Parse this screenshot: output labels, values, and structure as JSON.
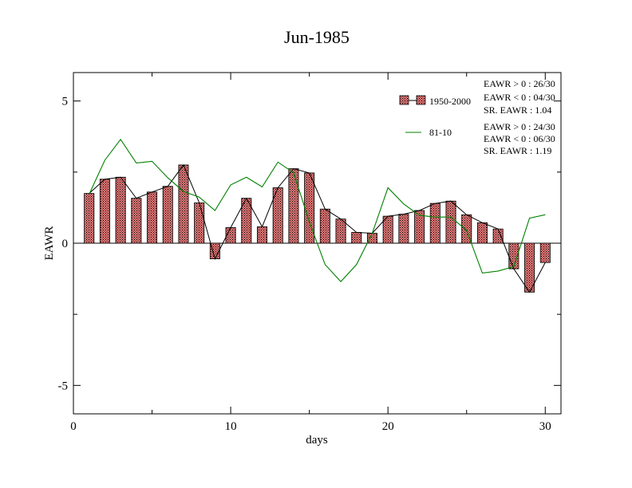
{
  "chart_data": {
    "type": "bar",
    "title": "Jun-1985",
    "xlabel": "days",
    "ylabel": "EAWR",
    "xlim": [
      0,
      31
    ],
    "ylim": [
      -6,
      6
    ],
    "xticks": [
      0,
      10,
      20,
      30
    ],
    "xtick_labels": [
      "0",
      "10",
      "20",
      "30"
    ],
    "yticks": [
      -5,
      0,
      5
    ],
    "ytick_labels": [
      "-5",
      "0",
      "5"
    ],
    "grid": false,
    "legend_position": "top-right",
    "x": [
      1,
      2,
      3,
      4,
      5,
      6,
      7,
      8,
      9,
      10,
      11,
      12,
      13,
      14,
      15,
      16,
      17,
      18,
      19,
      20,
      21,
      22,
      23,
      24,
      25,
      26,
      27,
      28,
      29,
      30
    ],
    "series": [
      {
        "name": "1950-2000",
        "kind": "bar-with-line",
        "color": "#e87878",
        "values": [
          1.75,
          2.25,
          2.32,
          1.58,
          1.8,
          2.0,
          2.75,
          1.42,
          -0.55,
          0.55,
          1.58,
          0.58,
          1.95,
          2.62,
          2.47,
          1.2,
          0.85,
          0.38,
          0.35,
          0.95,
          1.02,
          1.15,
          1.4,
          1.48,
          1.0,
          0.72,
          0.5,
          -0.9,
          -1.72,
          -0.68
        ]
      },
      {
        "name": "81-10",
        "kind": "line",
        "color": "#008000",
        "values": [
          1.72,
          2.92,
          3.65,
          2.82,
          2.88,
          2.3,
          1.82,
          1.62,
          1.15,
          2.05,
          2.32,
          1.98,
          2.85,
          2.48,
          0.75,
          -0.75,
          -1.35,
          -0.75,
          0.35,
          1.95,
          1.38,
          0.98,
          0.92,
          0.92,
          0.45,
          -1.05,
          -0.98,
          -0.82,
          0.88,
          1.0
        ]
      }
    ],
    "stats_1950_2000": [
      "EAWR > 0 : 26/30",
      "EAWR < 0 : 04/30",
      "SR. EAWR :  1.04"
    ],
    "stats_81_10": [
      "EAWR > 0 : 24/30",
      "EAWR < 0 : 06/30",
      "SR. EAWR :  1.19"
    ]
  }
}
